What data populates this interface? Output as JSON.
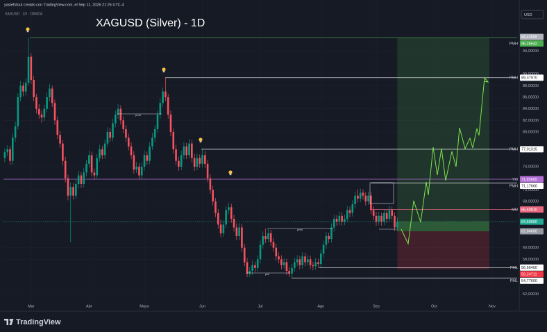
{
  "header": {
    "attribution": "yasiefstout creado con TradingView.com, el Sep 11, 2026 21:25 UTC-4",
    "symbol": "XAGUSD · 1D · OANDA",
    "currency": "USD",
    "logo": "TradingView"
  },
  "annotations": [
    "pmh",
    "pmh",
    "pml"
  ],
  "chart_data": {
    "type": "candlestick",
    "title": "XAGUSD (Silver) - 1D",
    "up_color": "#089981",
    "down_color": "#f7525f",
    "grid": true,
    "ylim": [
      50,
      101
    ],
    "yticks": [
      {
        "value": 94,
        "label": "94,00000"
      },
      {
        "value": 90,
        "label": "90,00000"
      },
      {
        "value": 88,
        "label": "88,00000"
      },
      {
        "value": 86,
        "label": "86,00000"
      },
      {
        "value": 84,
        "label": "84,00000"
      },
      {
        "value": 82,
        "label": "82,00000"
      },
      {
        "value": 80,
        "label": "80,00000"
      },
      {
        "value": 74,
        "label": "74,00000"
      },
      {
        "value": 70,
        "label": "70,00000"
      },
      {
        "value": 68,
        "label": "68,00000"
      },
      {
        "value": 60,
        "label": "60,00000"
      },
      {
        "value": 58,
        "label": "58,00000"
      },
      {
        "value": 52,
        "label": "52,00000"
      }
    ],
    "categories": [
      null,
      null,
      null,
      null,
      null,
      null,
      null,
      null,
      null,
      null,
      "Mar",
      null,
      null,
      null,
      null,
      null,
      null,
      null,
      null,
      null,
      null,
      null,
      null,
      null,
      null,
      null,
      null,
      null,
      null,
      null,
      null,
      null,
      "Abr",
      null,
      null,
      null,
      null,
      null,
      null,
      null,
      null,
      null,
      null,
      null,
      null,
      null,
      null,
      null,
      null,
      null,
      null,
      null,
      null,
      "Mayo",
      null,
      null,
      null,
      null,
      null,
      null,
      null,
      null,
      null,
      null,
      null,
      null,
      null,
      null,
      null,
      null,
      null,
      null,
      null,
      null,
      null,
      "Jun",
      null,
      null,
      null,
      null,
      null,
      null,
      null,
      null,
      null,
      null,
      null,
      null,
      null,
      null,
      null,
      null,
      null,
      null,
      null,
      null,
      null,
      "Jul",
      null,
      null,
      null,
      null,
      null,
      null,
      null,
      null,
      null,
      null,
      null,
      null,
      null,
      null,
      null,
      null,
      null,
      null,
      null,
      null,
      null,
      null,
      "Ago",
      null,
      null,
      null,
      null,
      null,
      null,
      null,
      null,
      null,
      null,
      null,
      null,
      null,
      null,
      null,
      null,
      null,
      null,
      null,
      null,
      "Sep",
      null,
      null,
      null,
      null,
      null,
      null,
      null,
      null,
      null,
      null,
      null,
      null,
      null,
      null,
      null,
      null,
      null,
      null,
      null,
      null,
      null,
      "Oct",
      null,
      null,
      null,
      null,
      null,
      null,
      null,
      null,
      null,
      null,
      null,
      null,
      null,
      null,
      null,
      null,
      null,
      null,
      null,
      null,
      null,
      "Nov",
      null,
      null,
      null,
      null,
      null,
      null,
      null,
      null,
      null
    ],
    "ohlc": [
      [
        75.5,
        77.2,
        74.8,
        76.5
      ],
      [
        76.5,
        77.7,
        75.8,
        77
      ],
      [
        77,
        77.6,
        74.3,
        75
      ],
      [
        75,
        79.7,
        74.4,
        79
      ],
      [
        79,
        81.8,
        78.3,
        81
      ],
      [
        81,
        86.7,
        80.4,
        86
      ],
      [
        86,
        88.8,
        85.3,
        88
      ],
      [
        88,
        88.6,
        86.2,
        87
      ],
      [
        87,
        89.3,
        86.3,
        88.5
      ],
      [
        88.5,
        96.27,
        88,
        93
      ],
      [
        93,
        93.6,
        88.3,
        89
      ],
      [
        89,
        89.7,
        85.3,
        86
      ],
      [
        86,
        86.6,
        83.2,
        84
      ],
      [
        84,
        84.8,
        82.3,
        83
      ],
      [
        83,
        83.7,
        81.6,
        82.5
      ],
      [
        82.5,
        84.7,
        81.9,
        84
      ],
      [
        84,
        86.8,
        83.4,
        86
      ],
      [
        86,
        88.3,
        85.3,
        87.5
      ],
      [
        87.5,
        88,
        84.3,
        85
      ],
      [
        85,
        85.6,
        81.2,
        82
      ],
      [
        82,
        82.7,
        78.8,
        79.5
      ],
      [
        79.5,
        80.2,
        77.3,
        78
      ],
      [
        78,
        78.6,
        74.2,
        75
      ],
      [
        75,
        75.7,
        71.3,
        72
      ],
      [
        72,
        72.6,
        68.2,
        69
      ],
      [
        69,
        71.3,
        61,
        70.5
      ],
      [
        70.5,
        71.2,
        68.3,
        69
      ],
      [
        69,
        71.8,
        68.4,
        71
      ],
      [
        71,
        73.3,
        70.3,
        72.5
      ],
      [
        72.5,
        73.1,
        70.3,
        71
      ],
      [
        71,
        73.8,
        70.4,
        73
      ],
      [
        73,
        75.2,
        72.3,
        74.5
      ],
      [
        74.5,
        76.8,
        73.9,
        76
      ],
      [
        76,
        76.6,
        72.3,
        73
      ],
      [
        73,
        73.7,
        71.8,
        72.5
      ],
      [
        72.5,
        76.2,
        72,
        75.5
      ],
      [
        75.5,
        77.8,
        74.9,
        77
      ],
      [
        77,
        77.6,
        75.3,
        76
      ],
      [
        76,
        78.7,
        75.4,
        78
      ],
      [
        78,
        80.8,
        77.4,
        80
      ],
      [
        80,
        80.7,
        78.3,
        79
      ],
      [
        79,
        82.3,
        78.4,
        81.5
      ],
      [
        81.5,
        83.7,
        80.8,
        83
      ],
      [
        83,
        84.8,
        82.3,
        84
      ],
      [
        84,
        84.6,
        81.3,
        82
      ],
      [
        82,
        82.7,
        79.8,
        80.5
      ],
      [
        80.5,
        81.2,
        78.3,
        79
      ],
      [
        79,
        79.7,
        76.8,
        77.5
      ],
      [
        77.5,
        78.2,
        75.3,
        76
      ],
      [
        76,
        76.7,
        72.8,
        73.5
      ],
      [
        73.5,
        74.8,
        72.9,
        74
      ],
      [
        74,
        74.6,
        71.8,
        72.5
      ],
      [
        72.5,
        74.7,
        71.9,
        74
      ],
      [
        74,
        76.8,
        73.3,
        76
      ],
      [
        76,
        76.6,
        74.3,
        75
      ],
      [
        75,
        78.2,
        74.4,
        77.5
      ],
      [
        77.5,
        79.8,
        76.9,
        79
      ],
      [
        79,
        81.2,
        78.3,
        80.5
      ],
      [
        80.5,
        83.7,
        79.8,
        83
      ],
      [
        83,
        85.8,
        82.3,
        85
      ],
      [
        85,
        87.7,
        84.3,
        87
      ],
      [
        87,
        89.38,
        85.3,
        86
      ],
      [
        86,
        86.6,
        82.3,
        83
      ],
      [
        83,
        83.7,
        79.3,
        80
      ],
      [
        80,
        80.6,
        76.3,
        77
      ],
      [
        77,
        77.8,
        74.3,
        75
      ],
      [
        75,
        75.7,
        73.3,
        74
      ],
      [
        74,
        76.8,
        73.4,
        76
      ],
      [
        76,
        78.2,
        75.3,
        77.5
      ],
      [
        77.5,
        78.1,
        75.3,
        76
      ],
      [
        76,
        78.8,
        75.4,
        78
      ],
      [
        78,
        78.6,
        74.8,
        75.5
      ],
      [
        75.5,
        76.2,
        73.3,
        74
      ],
      [
        74,
        76.3,
        73.4,
        75.5
      ],
      [
        75.5,
        76.1,
        73.8,
        74.5
      ],
      [
        74.5,
        77.01,
        73.9,
        76
      ],
      [
        76,
        76.7,
        73.8,
        74.5
      ],
      [
        74.5,
        75.2,
        71.3,
        72
      ],
      [
        72,
        72.7,
        69.3,
        70
      ],
      [
        70,
        70.7,
        67.3,
        68
      ],
      [
        68,
        68.6,
        65.3,
        66
      ],
      [
        66,
        66.7,
        63.3,
        64
      ],
      [
        64,
        64.8,
        61.8,
        62.5
      ],
      [
        62.5,
        64.7,
        61.9,
        64
      ],
      [
        64,
        67.2,
        63.4,
        66.5
      ],
      [
        66.5,
        67.8,
        65.8,
        67
      ],
      [
        67,
        67.6,
        64.3,
        65
      ],
      [
        65,
        65.7,
        62.8,
        63.5
      ],
      [
        63.5,
        64.2,
        61.3,
        62
      ],
      [
        62,
        64.2,
        61.3,
        63.5
      ],
      [
        63.5,
        64.1,
        59.3,
        60
      ],
      [
        60,
        60.7,
        56.8,
        57.5
      ],
      [
        57.5,
        58.2,
        54.9,
        55.5
      ],
      [
        55.5,
        56.7,
        54.9,
        56
      ],
      [
        56,
        57.8,
        55.3,
        57
      ],
      [
        57,
        57.6,
        55.8,
        56.5
      ],
      [
        56.5,
        58.7,
        55.9,
        58
      ],
      [
        58,
        61.2,
        57.3,
        60.5
      ],
      [
        60.5,
        62.8,
        59.8,
        62
      ],
      [
        62,
        63.3,
        60.8,
        61.5
      ],
      [
        61.5,
        63.2,
        60.9,
        62.5
      ],
      [
        62.5,
        63.1,
        60.3,
        61
      ],
      [
        61,
        61.7,
        59.3,
        60
      ],
      [
        60,
        60.7,
        57.8,
        58.5
      ],
      [
        58.5,
        59.2,
        57.3,
        58
      ],
      [
        58,
        58.7,
        56.3,
        57
      ],
      [
        57,
        58.2,
        56.4,
        57.5
      ],
      [
        57.5,
        58.1,
        55.3,
        56
      ],
      [
        56,
        56.7,
        54.9,
        55.5
      ],
      [
        55.5,
        57.2,
        54.78,
        56.5
      ],
      [
        56.5,
        58.2,
        55.9,
        57.5
      ],
      [
        57.5,
        58.7,
        56.8,
        58
      ],
      [
        58,
        58.6,
        56.3,
        57
      ],
      [
        57,
        59.2,
        56.4,
        58.5
      ],
      [
        58.5,
        59.1,
        56.8,
        57.5
      ],
      [
        57.5,
        58.7,
        56.9,
        58
      ],
      [
        58,
        58.6,
        56.3,
        57
      ],
      [
        57,
        57.6,
        56.1,
        56.8
      ],
      [
        56.8,
        58.2,
        56.2,
        57.5
      ],
      [
        57.5,
        58.1,
        56.5,
        57.2
      ],
      [
        57.2,
        59.7,
        56.6,
        59
      ],
      [
        59,
        61.2,
        58.3,
        60.5
      ],
      [
        60.5,
        62.7,
        59.8,
        62
      ],
      [
        62,
        62.6,
        60.8,
        61.5
      ],
      [
        61.5,
        64.2,
        60.9,
        63.5
      ],
      [
        63.5,
        65.7,
        62.8,
        65
      ],
      [
        65,
        65.6,
        63.8,
        64.5
      ],
      [
        64.5,
        66.2,
        63.9,
        65.5
      ],
      [
        65.5,
        66.1,
        63.8,
        64.5
      ],
      [
        64.5,
        65.7,
        63.9,
        65
      ],
      [
        65,
        67.2,
        64.4,
        66.5
      ],
      [
        66.5,
        67.1,
        65.3,
        66
      ],
      [
        66,
        68.2,
        65.4,
        67.5
      ],
      [
        67.5,
        69.7,
        66.8,
        69
      ],
      [
        69,
        70.1,
        67.8,
        68.5
      ],
      [
        68.5,
        70.2,
        67.9,
        69.5
      ],
      [
        69.5,
        70.1,
        68.3,
        69
      ],
      [
        69,
        69.6,
        67.3,
        68
      ],
      [
        68,
        69.7,
        67.4,
        69
      ],
      [
        69,
        69.6,
        65.8,
        66.5
      ],
      [
        66.5,
        67.2,
        64.8,
        65.5
      ],
      [
        65.5,
        66.2,
        63.8,
        64.5
      ],
      [
        64.5,
        66.2,
        63.9,
        65.5
      ],
      [
        65.5,
        66.1,
        63.8,
        64.5
      ],
      [
        64.5,
        66.7,
        63.9,
        66
      ],
      [
        66,
        66.6,
        64.3,
        65
      ],
      [
        65,
        67.2,
        64.4,
        66.5
      ],
      [
        66.5,
        67.1,
        64.8,
        65.5
      ],
      [
        65.5,
        66.1,
        62.85,
        63.5
      ],
      [
        63.5,
        65.2,
        62.9,
        64.5
      ],
      null,
      null,
      null,
      null,
      null,
      null,
      null,
      null,
      null,
      null,
      null,
      null,
      null,
      null,
      null,
      null,
      null,
      null,
      null,
      null,
      null,
      null,
      null,
      null,
      null,
      null,
      null,
      null,
      null,
      null,
      null,
      null,
      null,
      null,
      null,
      null,
      null,
      null,
      null,
      null,
      null,
      null,
      null,
      null,
      null
    ],
    "levels": [
      {
        "price": {
          "value": 96.42555,
          "label": "96,42555"
        },
        "color": "#b2b5be",
        "line": false
      },
      {
        "tag": "PMH",
        "price": {
          "value": 96.26642,
          "label": "96,26642"
        },
        "color": "#4caf50",
        "line": true
      },
      {
        "tag": "PMH",
        "price": {
          "value": 89.3797,
          "label": "89,37970"
        },
        "color": "#ffffff",
        "line": true
      },
      {
        "tag": "PMH",
        "price": {
          "value": 77.01315,
          "label": "77,01315"
        },
        "color": "#ffffff",
        "line": true
      },
      {
        "tag": "YO",
        "price": {
          "value": 71.83665,
          "label": "71,83665"
        },
        "color": "#b36fd6",
        "line": true
      },
      {
        "tag": "PMH",
        "price": {
          "value": 71.1766,
          "label": "71,17660"
        },
        "color": "#ffffff",
        "line": true
      },
      {
        "tag": "MO",
        "price": {
          "value": 66.6081,
          "label": "66,60810"
        },
        "color": "#e9687f",
        "line": true
      },
      {
        "price": {
          "value": 64.5,
          "label": "64,50000"
        },
        "color": "#22ab94",
        "line": true
      },
      {
        "price": {
          "value": 62.846,
          "label": "62,84600"
        },
        "color": "#9598a1",
        "line": false
      },
      {
        "tag": "PML",
        "price": {
          "value": 56.564,
          "label": "56,56400"
        },
        "color": "#ffffff",
        "line": true
      },
      {
        "price": {
          "value": 56.24711,
          "label": "56,24711"
        },
        "color": "#f23645",
        "line": false
      },
      {
        "tag": "PML",
        "price": {
          "value": 54.776,
          "label": "54,77600"
        },
        "color": "#ffffff",
        "line": true
      }
    ]
  }
}
